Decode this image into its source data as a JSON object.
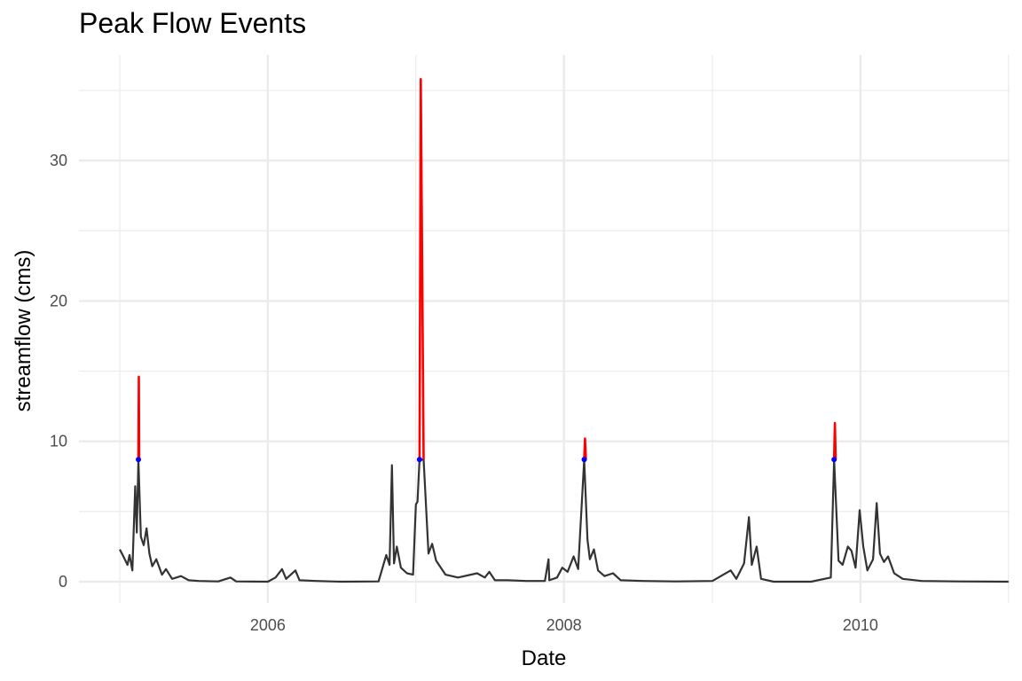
{
  "chart_data": {
    "type": "line",
    "title": "Peak Flow Events",
    "xlabel": "Date",
    "ylabel": "streamflow (cms)",
    "xlim": [
      "2005-01-01",
      "2011-01-01"
    ],
    "ylim": [
      0,
      36
    ],
    "x_ticks": [
      "2006-01-01",
      "2008-01-01",
      "2010-01-01"
    ],
    "x_tick_labels": [
      "2006",
      "2008",
      "2010"
    ],
    "y_ticks": [
      0,
      10,
      20,
      30
    ],
    "y_tick_labels": [
      "0",
      "10",
      "20",
      "30"
    ],
    "grid": true,
    "threshold": 8.7,
    "colors": {
      "flow": "#333333",
      "peak": "#ff0000",
      "threshold_point": "#0000ff",
      "grid": "#ebebeb"
    },
    "series": [
      {
        "role": "flow",
        "points": [
          [
            "2005-01-01",
            2.3
          ],
          [
            "2005-01-10",
            1.8
          ],
          [
            "2005-01-20",
            1.2
          ],
          [
            "2005-01-25",
            1.9
          ],
          [
            "2005-02-01",
            0.8
          ],
          [
            "2005-02-08",
            6.8
          ],
          [
            "2005-02-12",
            3.5
          ],
          [
            "2005-02-16",
            8.7
          ],
          [
            "2005-02-22",
            3.2
          ],
          [
            "2005-03-01",
            2.6
          ],
          [
            "2005-03-08",
            3.8
          ],
          [
            "2005-03-15",
            2.0
          ],
          [
            "2005-03-22",
            1.1
          ],
          [
            "2005-04-01",
            1.6
          ],
          [
            "2005-04-15",
            0.5
          ],
          [
            "2005-04-25",
            0.9
          ],
          [
            "2005-05-10",
            0.2
          ],
          [
            "2005-06-01",
            0.4
          ],
          [
            "2005-06-20",
            0.1
          ],
          [
            "2005-07-15",
            0.05
          ],
          [
            "2005-09-01",
            0.02
          ],
          [
            "2005-10-01",
            0.3
          ],
          [
            "2005-10-15",
            0.02
          ],
          [
            "2006-01-01",
            0.0
          ],
          [
            "2006-01-20",
            0.3
          ],
          [
            "2006-02-05",
            0.9
          ],
          [
            "2006-02-15",
            0.2
          ],
          [
            "2006-03-10",
            0.8
          ],
          [
            "2006-03-20",
            0.1
          ],
          [
            "2006-05-01",
            0.05
          ],
          [
            "2006-07-01",
            0.0
          ],
          [
            "2006-10-01",
            0.02
          ],
          [
            "2006-10-20",
            1.9
          ],
          [
            "2006-10-28",
            1.2
          ],
          [
            "2006-11-03",
            8.3
          ],
          [
            "2006-11-08",
            1.3
          ],
          [
            "2006-11-15",
            2.5
          ],
          [
            "2006-11-25",
            1.0
          ],
          [
            "2006-12-10",
            0.6
          ],
          [
            "2006-12-25",
            0.5
          ],
          [
            "2007-01-01",
            5.5
          ],
          [
            "2007-01-05",
            5.7
          ],
          [
            "2007-01-10",
            8.7
          ],
          [
            "2007-01-20",
            8.7
          ],
          [
            "2007-02-01",
            2.0
          ],
          [
            "2007-02-10",
            2.7
          ],
          [
            "2007-02-20",
            1.5
          ],
          [
            "2007-03-15",
            0.5
          ],
          [
            "2007-04-15",
            0.3
          ],
          [
            "2007-06-01",
            0.6
          ],
          [
            "2007-06-20",
            0.3
          ],
          [
            "2007-07-01",
            0.7
          ],
          [
            "2007-07-15",
            0.1
          ],
          [
            "2007-08-15",
            0.1
          ],
          [
            "2007-10-01",
            0.05
          ],
          [
            "2007-11-15",
            0.05
          ],
          [
            "2007-11-24",
            1.6
          ],
          [
            "2007-11-26",
            0.1
          ],
          [
            "2007-12-15",
            0.3
          ],
          [
            "2007-12-28",
            1.0
          ],
          [
            "2008-01-10",
            0.7
          ],
          [
            "2008-01-25",
            1.8
          ],
          [
            "2008-02-05",
            0.9
          ],
          [
            "2008-02-20",
            8.7
          ],
          [
            "2008-02-28",
            3.0
          ],
          [
            "2008-03-05",
            1.6
          ],
          [
            "2008-03-15",
            2.3
          ],
          [
            "2008-03-25",
            0.8
          ],
          [
            "2008-04-10",
            0.4
          ],
          [
            "2008-05-01",
            0.6
          ],
          [
            "2008-05-20",
            0.1
          ],
          [
            "2008-07-15",
            0.05
          ],
          [
            "2008-10-01",
            0.02
          ],
          [
            "2009-01-01",
            0.05
          ],
          [
            "2009-02-15",
            0.8
          ],
          [
            "2009-03-01",
            0.2
          ],
          [
            "2009-03-20",
            1.3
          ],
          [
            "2009-04-01",
            4.6
          ],
          [
            "2009-04-08",
            1.2
          ],
          [
            "2009-04-20",
            2.5
          ],
          [
            "2009-05-01",
            0.2
          ],
          [
            "2009-06-01",
            0.0
          ],
          [
            "2009-09-01",
            0.0
          ],
          [
            "2009-10-20",
            0.3
          ],
          [
            "2009-10-28",
            8.7
          ],
          [
            "2009-11-08",
            1.5
          ],
          [
            "2009-11-18",
            1.2
          ],
          [
            "2009-12-01",
            2.5
          ],
          [
            "2009-12-10",
            2.2
          ],
          [
            "2009-12-20",
            1.0
          ],
          [
            "2009-12-30",
            5.1
          ],
          [
            "2010-01-08",
            2.5
          ],
          [
            "2010-01-18",
            0.8
          ],
          [
            "2010-02-01",
            1.6
          ],
          [
            "2010-02-10",
            5.6
          ],
          [
            "2010-02-18",
            2.0
          ],
          [
            "2010-02-28",
            1.4
          ],
          [
            "2010-03-10",
            1.8
          ],
          [
            "2010-03-25",
            0.6
          ],
          [
            "2010-04-15",
            0.2
          ],
          [
            "2010-06-01",
            0.05
          ],
          [
            "2010-09-01",
            0.02
          ],
          [
            "2011-01-01",
            0.0
          ]
        ]
      },
      {
        "role": "peak",
        "segments": [
          [
            [
              "2005-02-16",
              8.7
            ],
            [
              "2005-02-17",
              14.6
            ],
            [
              "2005-02-18",
              8.7
            ]
          ],
          [
            [
              "2007-01-10",
              8.7
            ],
            [
              "2007-01-13",
              35.8
            ],
            [
              "2007-01-20",
              8.7
            ]
          ],
          [
            [
              "2008-02-20",
              8.7
            ],
            [
              "2008-02-22",
              10.2
            ],
            [
              "2008-02-24",
              8.7
            ]
          ],
          [
            [
              "2009-10-28",
              8.7
            ],
            [
              "2009-10-30",
              11.3
            ],
            [
              "2009-11-01",
              8.7
            ]
          ]
        ]
      },
      {
        "role": "threshold_point",
        "points": [
          [
            "2005-02-16",
            8.7
          ],
          [
            "2007-01-10",
            8.7
          ],
          [
            "2008-02-20",
            8.7
          ],
          [
            "2009-10-28",
            8.7
          ]
        ]
      }
    ]
  }
}
